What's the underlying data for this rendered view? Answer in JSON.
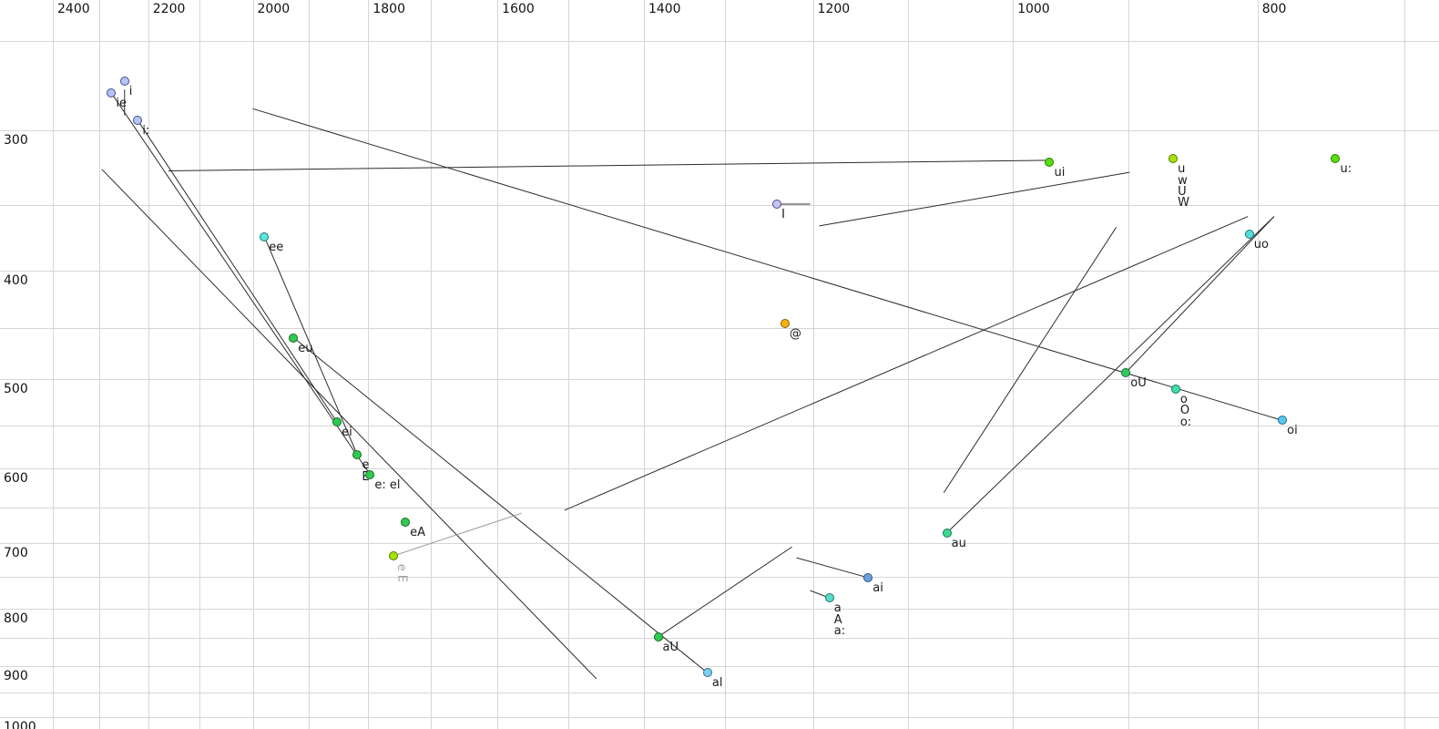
{
  "chart_data": {
    "type": "scatter",
    "title": "",
    "x_axis": {
      "position": "top",
      "scale": "log",
      "reversed": true,
      "ticks_labeled": [
        2400,
        2200,
        2000,
        1800,
        1600,
        1400,
        1200,
        1000,
        800
      ],
      "ticks_minor": [
        2300,
        2100,
        1900,
        1700,
        1500,
        1300,
        1100,
        900,
        700
      ],
      "range": [
        2510,
        690
      ]
    },
    "y_axis": {
      "position": "left",
      "scale": "log",
      "increases_downward": true,
      "ticks_labeled": [
        300,
        400,
        500,
        600,
        700,
        800,
        900,
        1000
      ],
      "ticks_minor": [
        250,
        350,
        450,
        550,
        650,
        750,
        850,
        950
      ],
      "range": [
        230,
        1030
      ]
    },
    "colors": {
      "background": "#ffffff",
      "grid": "#d6d6d6",
      "trajectory": "#2b2b2b",
      "trajectory_grey": "#9a9a9a",
      "label_text": "#1a1a1a",
      "label_text_grey": "#9aa0a6"
    },
    "points": [
      {
        "labels": [
          "ie"
        ],
        "f2": 2275,
        "f1": 278,
        "fill": "#b7c3f3",
        "stroke": "#3d4f91"
      },
      {
        "labels": [
          "i"
        ],
        "f2": 2248,
        "f1": 271,
        "fill": "#b7c3f3",
        "stroke": "#3d4f91"
      },
      {
        "labels": [
          "i:"
        ],
        "f2": 2221,
        "f1": 294,
        "fill": "#b7c3f3",
        "stroke": "#3d4f91"
      },
      {
        "labels": [
          "I"
        ],
        "f2": 1240,
        "f1": 349,
        "fill": "#c3c7f0",
        "stroke": "#4a4a8a"
      },
      {
        "labels": [
          "ee"
        ],
        "f2": 1979,
        "f1": 373,
        "fill": "#5ae6dc",
        "stroke": "#1e7a74"
      },
      {
        "labels": [
          "eu"
        ],
        "f2": 1927,
        "f1": 459,
        "fill": "#2ecc4e",
        "stroke": "#156a28"
      },
      {
        "labels": [
          "ei"
        ],
        "f2": 1852,
        "f1": 546,
        "fill": "#2ecc4e",
        "stroke": "#156a28"
      },
      {
        "labels": [
          "e",
          "E"
        ],
        "f2": 1818,
        "f1": 584,
        "fill": "#2ecc4e",
        "stroke": "#156a28"
      },
      {
        "labels": [
          "e: el"
        ],
        "f2": 1797,
        "f1": 608,
        "fill": "#2ecc4e",
        "stroke": "#156a28"
      },
      {
        "labels": [
          "eA"
        ],
        "f2": 1740,
        "f1": 670,
        "fill": "#2ecc4e",
        "stroke": "#156a28"
      },
      {
        "labels": [
          "e",
          "E"
        ],
        "f2": 1759,
        "f1": 718,
        "fill": "#a4e30a",
        "stroke": "#5c7a00",
        "label_grey": true,
        "rotated": true
      },
      {
        "labels": [
          "@"
        ],
        "f2": 1231,
        "f1": 446,
        "fill": "#f3b10c",
        "stroke": "#8a6200"
      },
      {
        "labels": [
          "ui"
        ],
        "f2": 967,
        "f1": 320,
        "fill": "#59dd0e",
        "stroke": "#2c7a00"
      },
      {
        "labels": [
          "u",
          "w",
          "U",
          "W"
        ],
        "f2": 864,
        "f1": 318,
        "fill": "#a4e30a",
        "stroke": "#5c7a00"
      },
      {
        "labels": [
          "u:"
        ],
        "f2": 745,
        "f1": 318,
        "fill": "#59dd0e",
        "stroke": "#2c7a00"
      },
      {
        "labels": [
          "uo"
        ],
        "f2": 806,
        "f1": 371,
        "fill": "#52dede",
        "stroke": "#1e7a7a"
      },
      {
        "labels": [
          "oU"
        ],
        "f2": 902,
        "f1": 493,
        "fill": "#2ecc5e",
        "stroke": "#156a30"
      },
      {
        "labels": [
          "o",
          "O",
          "o:"
        ],
        "f2": 862,
        "f1": 510,
        "fill": "#3fdfa6",
        "stroke": "#157a56"
      },
      {
        "labels": [
          "oi"
        ],
        "f2": 782,
        "f1": 544,
        "fill": "#56c8f0",
        "stroke": "#1d6a93"
      },
      {
        "labels": [
          "au"
        ],
        "f2": 1062,
        "f1": 685,
        "fill": "#3fd98f",
        "stroke": "#157a4b"
      },
      {
        "labels": [
          "ai"
        ],
        "f2": 1141,
        "f1": 751,
        "fill": "#6f9fdc",
        "stroke": "#2d5490"
      },
      {
        "labels": [
          "a",
          "A",
          "a:"
        ],
        "f2": 1182,
        "f1": 783,
        "fill": "#55ddc8",
        "stroke": "#1a7a69"
      },
      {
        "labels": [
          "aU"
        ],
        "f2": 1382,
        "f1": 848,
        "fill": "#2ecc4e",
        "stroke": "#156a28"
      },
      {
        "labels": [
          "al"
        ],
        "f2": 1321,
        "f1": 913,
        "fill": "#7fd0f0",
        "stroke": "#2d6e93"
      }
    ],
    "trajectories": [
      {
        "a": [
          2160,
          326
        ],
        "b": [
          967,
          319
        ],
        "grey": false
      },
      {
        "a": [
          2000,
          287
        ],
        "b": [
          782,
          544
        ],
        "grey": false
      },
      {
        "a": [
          2295,
          325
        ],
        "b": [
          1462,
          924
        ],
        "grey": false
      },
      {
        "a": [
          2275,
          278
        ],
        "b": [
          1797,
          608
        ],
        "grey": false
      },
      {
        "a": [
          2221,
          294
        ],
        "b": [
          1852,
          546
        ],
        "grey": false
      },
      {
        "a": [
          2248,
          276
        ],
        "b": [
          2248,
          291
        ],
        "grey": false
      },
      {
        "a": [
          1240,
          349
        ],
        "b": [
          1203,
          349
        ],
        "grey": false
      },
      {
        "a": [
          1979,
          373
        ],
        "b": [
          1818,
          584
        ],
        "grey": false
      },
      {
        "a": [
          1927,
          459
        ],
        "b": [
          1321,
          913
        ],
        "grey": false
      },
      {
        "a": [
          788,
          358
        ],
        "b": [
          1062,
          685
        ],
        "grey": false
      },
      {
        "a": [
          788,
          358
        ],
        "b": [
          902,
          493
        ],
        "grey": false
      },
      {
        "a": [
          910,
          366
        ],
        "b": [
          1065,
          631
        ],
        "grey": false
      },
      {
        "a": [
          1505,
          654
        ],
        "b": [
          807,
          358
        ],
        "grey": false
      },
      {
        "a": [
          1759,
          718
        ],
        "b": [
          1565,
          658
        ],
        "grey": true
      },
      {
        "a": [
          1382,
          848
        ],
        "b": [
          1223,
          705
        ],
        "grey": false
      },
      {
        "a": [
          1218,
          721
        ],
        "b": [
          1141,
          751
        ],
        "grey": false
      },
      {
        "a": [
          1203,
          771
        ],
        "b": [
          1182,
          783
        ],
        "grey": false
      },
      {
        "a": [
          1193,
          365
        ],
        "b": [
          899,
          327
        ],
        "grey": false
      }
    ]
  }
}
